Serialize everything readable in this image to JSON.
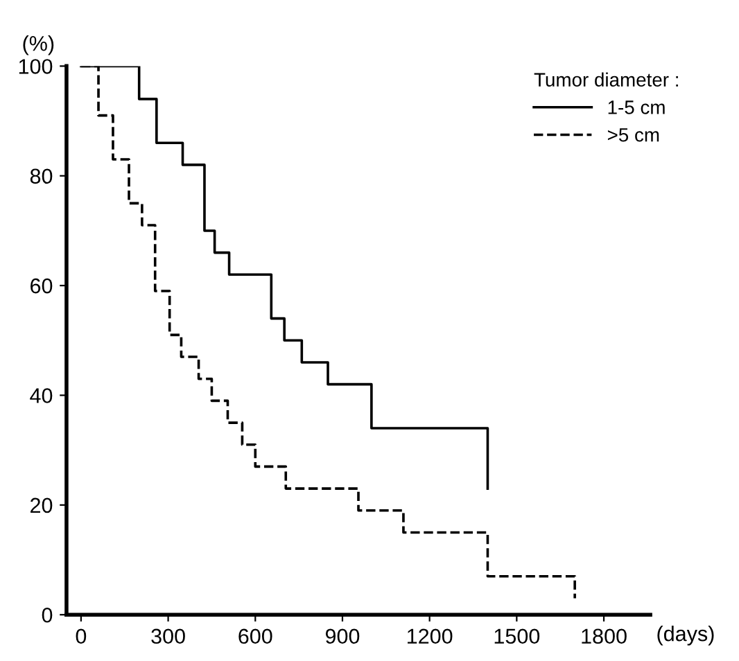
{
  "chart_data": {
    "type": "step",
    "xlabel": "(days)",
    "ylabel": "(%)",
    "legend_title": "Tumor diameter :",
    "legend": "top right",
    "series": [
      {
        "name": "1-5 cm",
        "color": "#000000",
        "line_style": "solid",
        "x": [
          0,
          200,
          260,
          350,
          425,
          460,
          510,
          655,
          700,
          760,
          850,
          1000,
          1400,
          1400
        ],
        "values": [
          100,
          94,
          86,
          82,
          70,
          66,
          62,
          54,
          50,
          46,
          42,
          34,
          34,
          23
        ]
      },
      {
        "name": ">5 cm",
        "color": "#000000",
        "line_style": "dashed",
        "x": [
          0,
          60,
          110,
          165,
          210,
          255,
          305,
          345,
          405,
          450,
          505,
          555,
          600,
          705,
          955,
          1110,
          1400,
          1700,
          1700
        ],
        "values": [
          100,
          91,
          83,
          75,
          71,
          59,
          51,
          47,
          43,
          39,
          35,
          31,
          27,
          23,
          19,
          15,
          7,
          7,
          3
        ]
      }
    ],
    "xlim": [
      -50,
      1960
    ],
    "ylim": [
      0,
      100
    ],
    "xticks": [
      0,
      300,
      600,
      900,
      1200,
      1500,
      1800
    ],
    "yticks": [
      0,
      20,
      40,
      60,
      80,
      100
    ],
    "grid": false
  }
}
